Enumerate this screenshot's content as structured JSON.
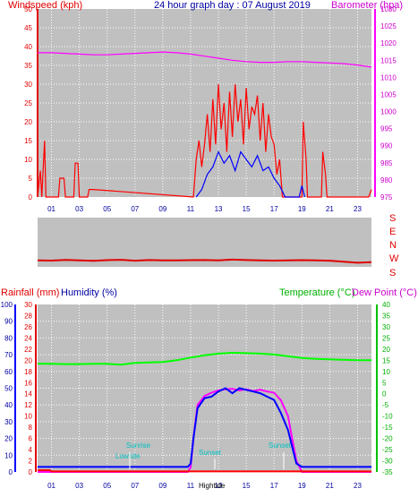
{
  "colors": {
    "panel_bg": "#c0c0c0",
    "windspeed": "#ff0000",
    "windgust": "#0000ff",
    "barometer": "#ff00ff",
    "direction": "#e00000",
    "rainfall": "#ff0000",
    "humidity": "#0000ff",
    "temperature": "#00ff00",
    "dewpoint": "#ff00ff",
    "title": "#0000a0"
  },
  "chart_data": [
    {
      "type": "line",
      "title": "24 hour graph day : 07 August 2019",
      "ylabel_left": "Windspeed (kph)",
      "ylabel_right": "Barometer (hpa)",
      "xticks": [
        "01",
        "03",
        "05",
        "07",
        "09",
        "11",
        "13",
        "15",
        "17",
        "19",
        "21",
        "23"
      ],
      "yticks_left": [
        "0",
        "5",
        "10",
        "15",
        "20",
        "25",
        "30",
        "35",
        "40",
        "45",
        "50"
      ],
      "yticks_right": [
        "975",
        "980",
        "985",
        "990",
        "995",
        "1000",
        "1005",
        "1010",
        "1015",
        "1020",
        "1025",
        "1030"
      ],
      "ylim_left": [
        0,
        50
      ],
      "ylim_right": [
        975,
        1030
      ],
      "xlim": [
        0,
        24
      ],
      "grid": true,
      "series": [
        {
          "name": "Barometer",
          "axis": "right",
          "x": [
            0,
            1,
            2,
            3,
            4,
            5,
            6,
            7,
            8,
            9,
            10,
            11,
            12,
            13,
            14,
            15,
            16,
            17,
            18,
            19,
            20,
            21,
            22,
            23,
            24
          ],
          "y": [
            1017.2,
            1017.2,
            1017.0,
            1016.8,
            1016.6,
            1016.6,
            1016.8,
            1017.0,
            1017.2,
            1017.4,
            1017.2,
            1016.8,
            1016.2,
            1015.6,
            1015.0,
            1014.6,
            1014.4,
            1014.4,
            1014.6,
            1014.6,
            1014.4,
            1014.2,
            1014.0,
            1013.6,
            1013.0
          ]
        },
        {
          "name": "Windspeed",
          "axis": "left",
          "x": [
            0,
            0.2,
            0.3,
            0.5,
            0.6,
            1.5,
            1.6,
            1.9,
            2.0,
            2.6,
            2.7,
            2.9,
            3.0,
            3.6,
            3.7,
            4.0,
            11.2,
            11.4,
            11.6,
            11.8,
            12.0,
            12.2,
            12.4,
            12.6,
            12.8,
            13.0,
            13.2,
            13.4,
            13.6,
            13.8,
            14.0,
            14.2,
            14.4,
            14.6,
            14.8,
            15.0,
            15.2,
            15.4,
            15.6,
            15.8,
            16.0,
            16.2,
            16.4,
            16.6,
            16.8,
            17.0,
            17.2,
            17.4,
            17.6,
            17.8,
            19.0,
            19.1,
            19.3,
            19.4,
            20.4,
            20.5,
            20.7,
            20.8,
            23.8,
            24.0
          ],
          "y": [
            0,
            7,
            0,
            15,
            0,
            0,
            5,
            5,
            0,
            0,
            9,
            9,
            0,
            0,
            2,
            2,
            0,
            10,
            15,
            8,
            14,
            22,
            12,
            26,
            14,
            30,
            18,
            25,
            12,
            28,
            16,
            30,
            20,
            26,
            14,
            29,
            18,
            24,
            22,
            27,
            15,
            25,
            12,
            22,
            16,
            14,
            6,
            10,
            0,
            0,
            0,
            20,
            10,
            0,
            0,
            12,
            6,
            0,
            0,
            2
          ]
        },
        {
          "name": "Gust",
          "axis": "left",
          "x": [
            11.4,
            11.8,
            12.2,
            12.6,
            13.0,
            13.4,
            13.8,
            14.2,
            14.6,
            15.0,
            15.4,
            15.8,
            16.2,
            16.6,
            17.0,
            17.4,
            17.8,
            18.8,
            19.0,
            19.2
          ],
          "y": [
            0,
            2,
            6,
            8,
            12,
            9,
            11,
            7,
            12,
            10,
            8,
            11,
            7,
            8,
            5,
            3,
            0,
            0,
            3,
            0
          ]
        }
      ]
    },
    {
      "type": "line",
      "ylabel_right": "S E N W S",
      "xlim": [
        0,
        24
      ],
      "direction_labels": [
        "S",
        "E",
        "N",
        "W",
        "S"
      ],
      "series": [
        {
          "name": "Wind direction",
          "x": [
            0,
            1,
            2,
            3,
            4,
            5,
            6,
            7,
            8,
            9,
            10,
            11,
            12,
            13,
            14,
            15,
            16,
            17,
            18,
            19,
            20,
            21,
            22,
            23,
            24
          ],
          "y": [
            228,
            226,
            231,
            227,
            224,
            229,
            232,
            225,
            230,
            228,
            227,
            229,
            230,
            228,
            233,
            230,
            228,
            226,
            227,
            229,
            228,
            225,
            218,
            210,
            215
          ]
        }
      ]
    },
    {
      "type": "line",
      "ylabel_left_1": "Rainfall (mm)",
      "ylabel_left_2": "Humidity (%)",
      "ylabel_right_1": "Temperature (°C)",
      "ylabel_right_2": "Dew Point (°C)",
      "xticks": [
        "01",
        "03",
        "05",
        "07",
        "09",
        "11",
        "13",
        "15",
        "17",
        "19",
        "21",
        "23"
      ],
      "yticks_humidity": [
        "0",
        "10",
        "20",
        "30",
        "40",
        "50",
        "60",
        "70",
        "80",
        "90",
        "100"
      ],
      "yticks_rain": [
        "0",
        "2",
        "4",
        "6",
        "8",
        "10",
        "12",
        "14",
        "16",
        "18",
        "20",
        "22",
        "24",
        "26",
        "28",
        "30"
      ],
      "yticks_temp": [
        "-35",
        "-30",
        "-25",
        "-20",
        "-15",
        "-10",
        "-5",
        "0",
        "5",
        "10",
        "15",
        "20",
        "25",
        "30",
        "35",
        "40"
      ],
      "ylim_temp": [
        -35,
        40
      ],
      "ylim_humidity": [
        0,
        100
      ],
      "ylim_rain": [
        0,
        30
      ],
      "xlim": [
        0,
        24
      ],
      "grid": true,
      "annotations": [
        "Sunrise",
        "Lowtide",
        "Sunset",
        "Sunset",
        "Hightide",
        "Hightide"
      ],
      "series": [
        {
          "name": "Temperature",
          "axis": "temp",
          "x": [
            0,
            1,
            2,
            3,
            4,
            5,
            6,
            7,
            8,
            9,
            10,
            11,
            12,
            13,
            14,
            15,
            16,
            17,
            18,
            19,
            20,
            21,
            22,
            23,
            24
          ],
          "y": [
            13.5,
            13.4,
            13.3,
            13.3,
            13.4,
            13.4,
            13.0,
            13.8,
            14.0,
            14.2,
            15.0,
            16.2,
            17.2,
            18.0,
            18.4,
            18.2,
            18.0,
            17.6,
            16.8,
            16.0,
            15.6,
            15.4,
            15.2,
            15.0,
            15.0
          ]
        },
        {
          "name": "Dew Point",
          "axis": "temp",
          "x": [
            0,
            4,
            8,
            10,
            10.8,
            11.0,
            11.2,
            11.5,
            12.0,
            12.5,
            13.0,
            13.5,
            14.0,
            14.5,
            15.0,
            15.5,
            16.0,
            16.5,
            17.0,
            17.5,
            18.0,
            18.3,
            18.6,
            19.0,
            24
          ],
          "y": [
            -35,
            -35,
            -35,
            -35,
            -35,
            -33,
            -20,
            -5,
            -1,
            0.5,
            1.5,
            2.0,
            2.2,
            1.5,
            2.0,
            1.2,
            1.8,
            1.0,
            0.5,
            -3,
            -10,
            -20,
            -30,
            -35,
            -35
          ]
        },
        {
          "name": "Humidity",
          "axis": "humidity",
          "x": [
            0,
            4,
            8,
            10,
            10.8,
            11.0,
            11.2,
            11.5,
            12.0,
            12.5,
            13.0,
            13.5,
            14.0,
            14.5,
            15.0,
            15.5,
            16.0,
            16.5,
            17.0,
            17.5,
            18.0,
            18.3,
            18.6,
            19.0,
            24
          ],
          "y": [
            3,
            3,
            3,
            3,
            3,
            5,
            20,
            38,
            44,
            45,
            48,
            50,
            47,
            50,
            49,
            48,
            47,
            45,
            43,
            35,
            25,
            15,
            5,
            3,
            3
          ]
        },
        {
          "name": "Rainfall",
          "axis": "rain",
          "x": [
            0,
            0.9,
            1.0,
            24
          ],
          "y": [
            0.3,
            0.3,
            0.1,
            0.1
          ]
        }
      ]
    }
  ]
}
